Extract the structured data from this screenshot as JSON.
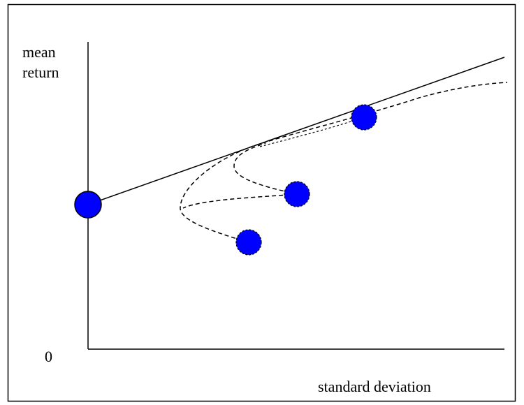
{
  "labels": {
    "y_axis_line1": "mean",
    "y_axis_line2": "return",
    "origin": "0",
    "x_axis": "standard deviation"
  },
  "colors": {
    "dot_fill": "#0000ff",
    "line": "#000000",
    "frame": "#000000"
  }
}
